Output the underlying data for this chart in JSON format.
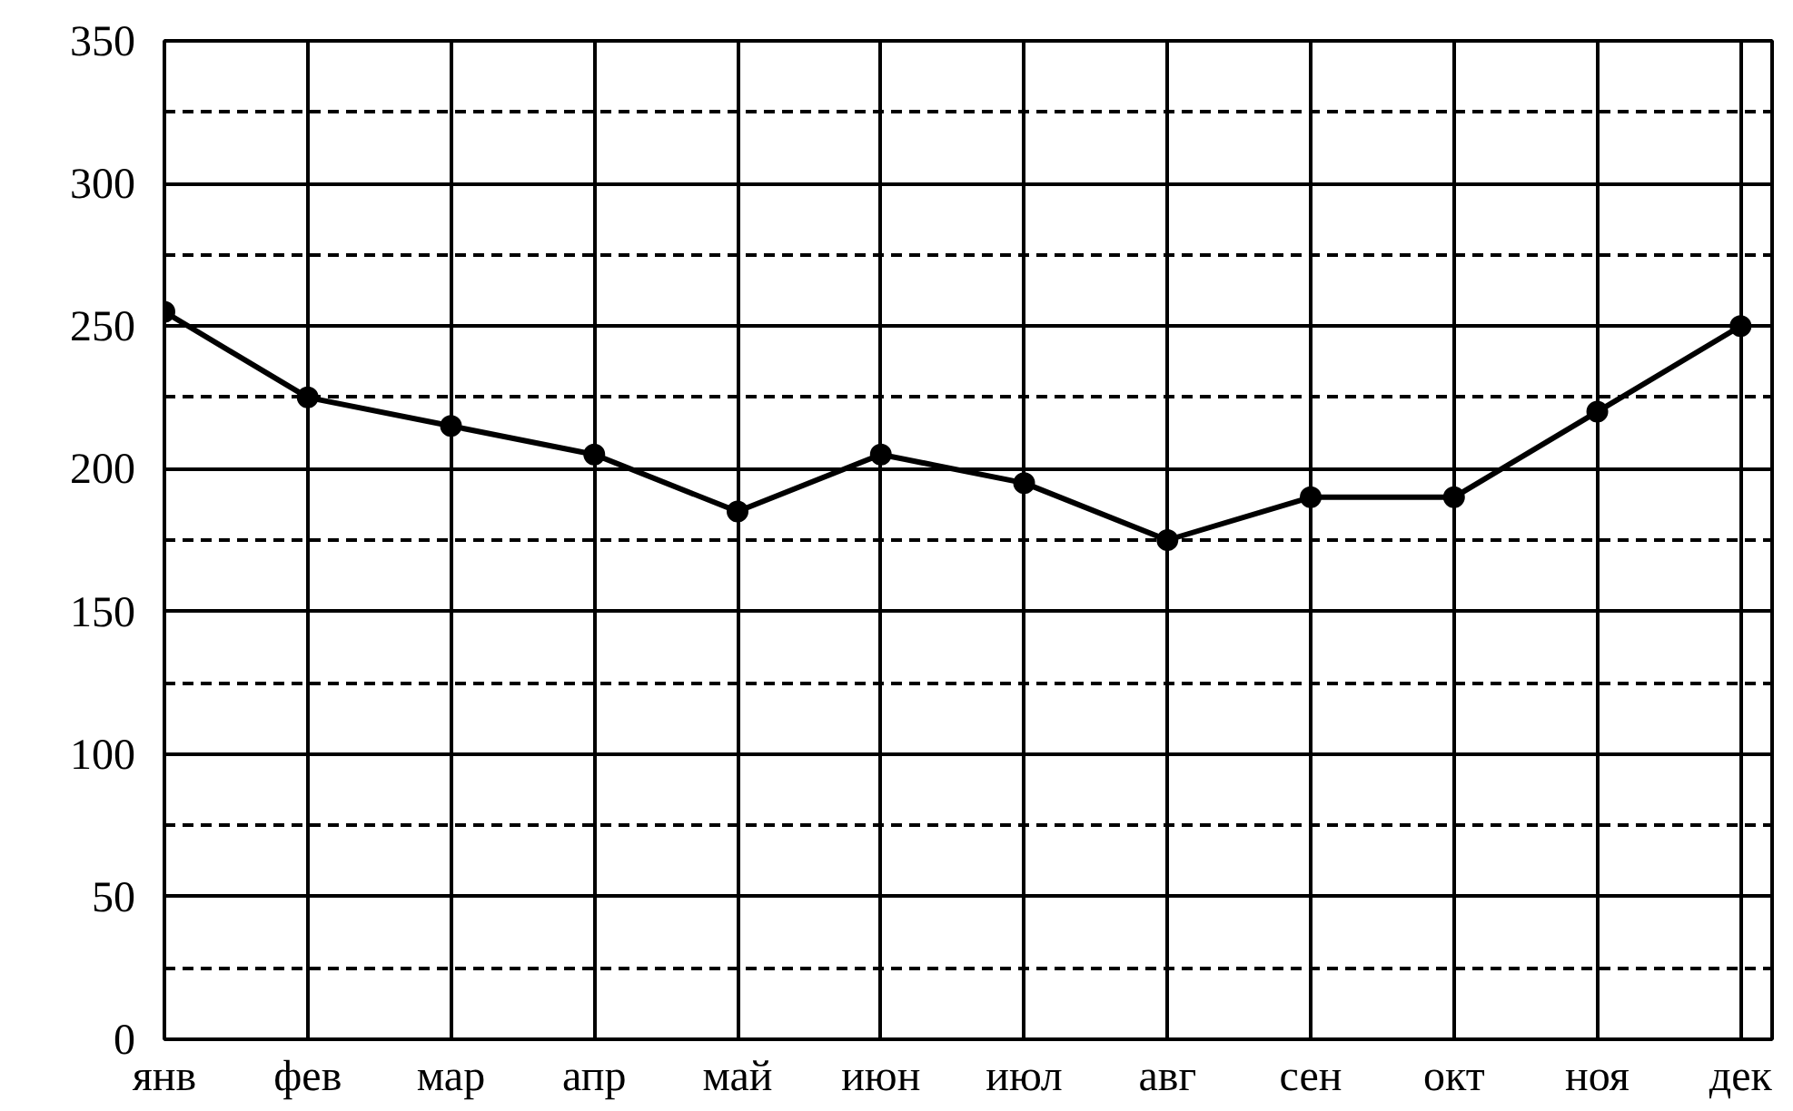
{
  "chart_data": {
    "type": "line",
    "categories": [
      "янв",
      "фев",
      "мар",
      "апр",
      "май",
      "июн",
      "июл",
      "авг",
      "сен",
      "окт",
      "ноя",
      "дек"
    ],
    "series": [
      {
        "color": "#000000",
        "values": [
          255,
          225,
          215,
          205,
          185,
          205,
          195,
          175,
          190,
          190,
          220,
          250
        ]
      }
    ],
    "ylim": [
      0,
      350
    ],
    "yticks": [
      0,
      50,
      100,
      150,
      200,
      250,
      300,
      350
    ],
    "grid": true,
    "marker": "circle",
    "line_style": "solid"
  }
}
